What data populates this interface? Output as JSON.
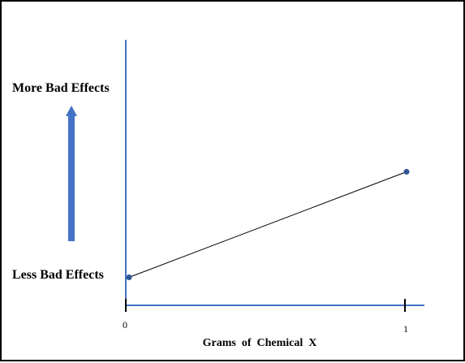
{
  "chart_data": {
    "type": "line",
    "title": "",
    "xlabel": "Grams  of  Chemical  X",
    "ylabel": "",
    "y_top_label": "More Bad Effects",
    "y_bottom_label": "Less Bad Effects",
    "x_ticks": [
      "0",
      "1"
    ],
    "xlim": [
      0,
      1
    ],
    "ylim": [
      0,
      1
    ],
    "grid": false,
    "series": [
      {
        "x": [
          0,
          1
        ],
        "y": [
          0.1,
          0.5
        ]
      }
    ],
    "colors": {
      "axis": "#4472c4",
      "arrow": "#4472c4",
      "line": "#000000",
      "marker": "#2f5597"
    }
  }
}
